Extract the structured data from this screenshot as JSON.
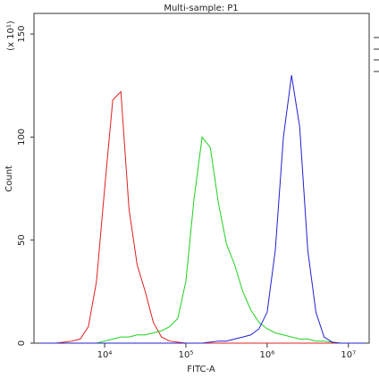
{
  "chart_data": {
    "type": "line",
    "title": "Multi-sample: P1",
    "x_label": "FITC-A",
    "y_label": "Count",
    "y_unit_label": "(x 10¹)",
    "xscale": "log",
    "xlim": [
      1350,
      18000000
    ],
    "xticks": [
      {
        "value": 10000,
        "label": "10⁴"
      },
      {
        "value": 100000,
        "label": "10⁵"
      },
      {
        "value": 1000000,
        "label": "10⁶"
      },
      {
        "value": 10000000,
        "label": "10⁷"
      }
    ],
    "ylim": [
      0,
      160
    ],
    "yticks": [
      0,
      50,
      100,
      150
    ],
    "x": [
      1585,
      1995,
      2512,
      3162,
      3981,
      5012,
      6310,
      7943,
      10000,
      12589,
      15849,
      19953,
      25119,
      31623,
      39811,
      50119,
      63096,
      79433,
      100000,
      125893,
      158489,
      199526,
      251189,
      316228,
      398107,
      501187,
      630957,
      794328,
      1000000,
      1258925,
      1584893,
      1995262,
      2511886,
      3162278,
      3981072,
      5011872,
      6309573,
      7943282,
      10000000,
      12589254,
      15848932
    ],
    "series": [
      {
        "color": "#e02020",
        "values": [
          0,
          0,
          0,
          0.5,
          1,
          2,
          8,
          30,
          75,
          118,
          122,
          65,
          38,
          25,
          10,
          3,
          1,
          0.5,
          0,
          0,
          0,
          0,
          0,
          0,
          0,
          0,
          0,
          0,
          0,
          0,
          0,
          0,
          0,
          0,
          0,
          0,
          0,
          0,
          0,
          0,
          0
        ]
      },
      {
        "color": "#20d020",
        "values": [
          0,
          0,
          0,
          0,
          0,
          0,
          0,
          0,
          1,
          2,
          3,
          3,
          4,
          4,
          5,
          6,
          8,
          12,
          30,
          70,
          100,
          95,
          68,
          48,
          38,
          25,
          16,
          10,
          7,
          5,
          4,
          3,
          2,
          2,
          1,
          1,
          0.5,
          0,
          0,
          0,
          0
        ]
      },
      {
        "color": "#2020d0",
        "values": [
          0,
          0,
          0,
          0,
          0,
          0,
          0,
          0,
          0,
          0,
          0,
          0,
          0,
          0,
          0,
          0,
          0,
          0,
          0,
          0,
          0,
          0.5,
          1,
          1,
          2,
          3,
          4,
          7,
          15,
          45,
          100,
          130,
          105,
          45,
          15,
          3,
          0.5,
          0,
          0,
          0,
          0
        ]
      }
    ]
  }
}
